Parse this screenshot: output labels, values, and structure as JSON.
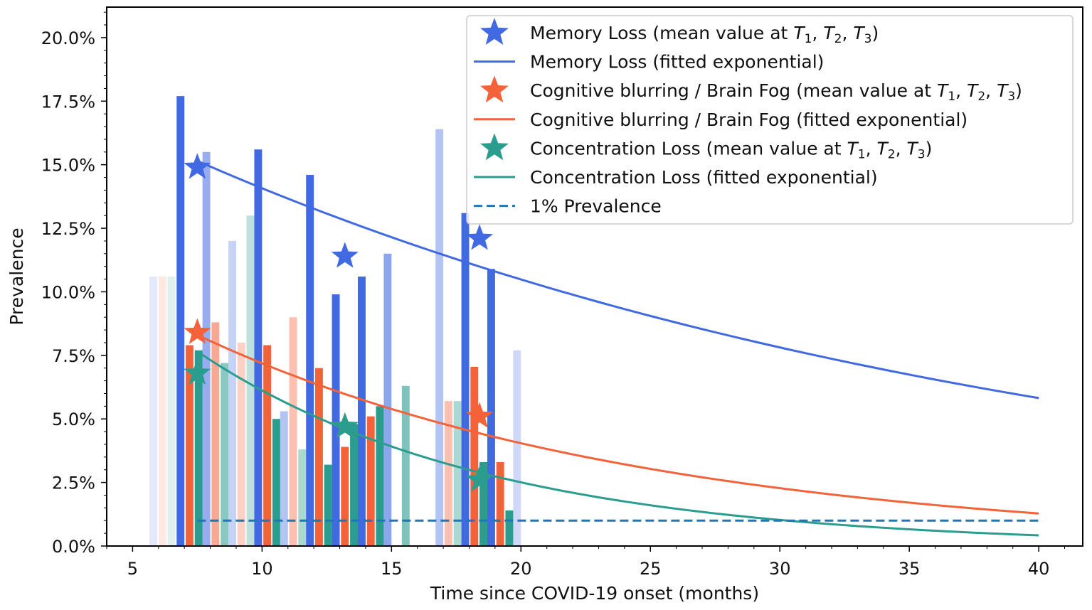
{
  "chart_data": {
    "type": "bar",
    "title": "",
    "xlabel": "Time since COVID-19 onset (months)",
    "ylabel": "Prevalence",
    "xlim": [
      4,
      41.7
    ],
    "ylim": [
      0,
      21.2
    ],
    "xticks": [
      5,
      10,
      15,
      20,
      25,
      30,
      35,
      40
    ],
    "xtick_labels": [
      "5",
      "10",
      "15",
      "20",
      "25",
      "30",
      "35",
      "40"
    ],
    "yticks": [
      0,
      2.5,
      5,
      7.5,
      10,
      12.5,
      15,
      17.5,
      20
    ],
    "ytick_labels": [
      "0.0%",
      "2.5%",
      "5.0%",
      "7.5%",
      "10.0%",
      "12.5%",
      "15.0%",
      "17.5%",
      "20.0%"
    ],
    "bar_width_months": 0.3,
    "colors": {
      "memory": "#4169e1",
      "brainfog": "#f4623a",
      "concentration": "#2a9d8f",
      "threshold": "#1f77b4",
      "frame": "#000000"
    },
    "bars": [
      {
        "series": "memory",
        "x": 5.8,
        "value": 10.6,
        "opacity": 0.15
      },
      {
        "series": "brainfog",
        "x": 6.15,
        "value": 10.6,
        "opacity": 0.15
      },
      {
        "series": "concentration",
        "x": 6.5,
        "value": 10.6,
        "opacity": 0.15
      },
      {
        "series": "memory",
        "x": 6.85,
        "value": 17.7,
        "opacity": 1.0
      },
      {
        "series": "brainfog",
        "x": 7.2,
        "value": 7.9,
        "opacity": 1.0
      },
      {
        "series": "concentration",
        "x": 7.55,
        "value": 7.7,
        "opacity": 1.0
      },
      {
        "series": "memory",
        "x": 7.85,
        "value": 15.5,
        "opacity": 0.55
      },
      {
        "series": "brainfog",
        "x": 8.2,
        "value": 8.8,
        "opacity": 0.55
      },
      {
        "series": "concentration",
        "x": 8.55,
        "value": 7.2,
        "opacity": 0.55
      },
      {
        "series": "memory",
        "x": 8.85,
        "value": 12.0,
        "opacity": 0.3
      },
      {
        "series": "brainfog",
        "x": 9.2,
        "value": 8.0,
        "opacity": 0.3
      },
      {
        "series": "concentration",
        "x": 9.55,
        "value": 13.0,
        "opacity": 0.3
      },
      {
        "series": "memory",
        "x": 9.85,
        "value": 15.6,
        "opacity": 1.0
      },
      {
        "series": "brainfog",
        "x": 10.2,
        "value": 7.9,
        "opacity": 1.0
      },
      {
        "series": "concentration",
        "x": 10.55,
        "value": 5.0,
        "opacity": 1.0
      },
      {
        "series": "memory",
        "x": 10.85,
        "value": 5.3,
        "opacity": 0.4
      },
      {
        "series": "brainfog",
        "x": 11.2,
        "value": 9.0,
        "opacity": 0.4
      },
      {
        "series": "concentration",
        "x": 11.55,
        "value": 3.8,
        "opacity": 0.4
      },
      {
        "series": "memory",
        "x": 11.85,
        "value": 14.6,
        "opacity": 1.0
      },
      {
        "series": "brainfog",
        "x": 12.2,
        "value": 7.0,
        "opacity": 1.0
      },
      {
        "series": "concentration",
        "x": 12.55,
        "value": 3.2,
        "opacity": 1.0
      },
      {
        "series": "memory",
        "x": 12.85,
        "value": 9.9,
        "opacity": 1.0
      },
      {
        "series": "brainfog",
        "x": 13.2,
        "value": 3.9,
        "opacity": 1.0
      },
      {
        "series": "concentration",
        "x": 13.55,
        "value": 4.8,
        "opacity": 1.0
      },
      {
        "series": "memory",
        "x": 13.85,
        "value": 10.6,
        "opacity": 1.0
      },
      {
        "series": "brainfog",
        "x": 14.2,
        "value": 5.1,
        "opacity": 1.0
      },
      {
        "series": "concentration",
        "x": 14.55,
        "value": 5.5,
        "opacity": 1.0
      },
      {
        "series": "memory",
        "x": 14.85,
        "value": 11.5,
        "opacity": 0.6
      },
      {
        "series": "concentration",
        "x": 15.55,
        "value": 6.3,
        "opacity": 0.6
      },
      {
        "series": "memory",
        "x": 16.85,
        "value": 16.4,
        "opacity": 0.4
      },
      {
        "series": "brainfog",
        "x": 17.2,
        "value": 5.7,
        "opacity": 0.4
      },
      {
        "series": "concentration",
        "x": 17.55,
        "value": 5.7,
        "opacity": 0.4
      },
      {
        "series": "memory",
        "x": 17.85,
        "value": 13.1,
        "opacity": 1.0
      },
      {
        "series": "brainfog",
        "x": 18.2,
        "value": 7.05,
        "opacity": 1.0
      },
      {
        "series": "concentration",
        "x": 18.55,
        "value": 3.3,
        "opacity": 1.0
      },
      {
        "series": "memory",
        "x": 18.85,
        "value": 10.9,
        "opacity": 1.0
      },
      {
        "series": "brainfog",
        "x": 19.2,
        "value": 3.3,
        "opacity": 1.0
      },
      {
        "series": "concentration",
        "x": 19.55,
        "value": 1.4,
        "opacity": 1.0
      },
      {
        "series": "memory",
        "x": 19.85,
        "value": 7.7,
        "opacity": 0.25
      }
    ],
    "mean_points": [
      {
        "series": "memory",
        "x": [
          7.5,
          13.2,
          18.4
        ],
        "y": [
          14.9,
          11.4,
          12.1
        ]
      },
      {
        "series": "brainfog",
        "x": [
          7.5,
          13.2,
          18.4
        ],
        "y": [
          8.4,
          4.7,
          5.1
        ]
      },
      {
        "series": "concentration",
        "x": [
          7.5,
          13.2,
          18.4
        ],
        "y": [
          6.8,
          4.7,
          2.6
        ]
      }
    ],
    "fitted_curves": [
      {
        "series": "memory",
        "x_range": [
          7.5,
          40
        ],
        "y_start": 15.15,
        "y_end": 5.82
      },
      {
        "series": "brainfog",
        "x_range": [
          7.5,
          40
        ],
        "y_start": 8.3,
        "y_end": 1.28
      },
      {
        "series": "concentration",
        "x_range": [
          7.5,
          40
        ],
        "y_start": 7.65,
        "y_end": 0.42
      }
    ],
    "threshold": {
      "x_range": [
        7.5,
        40
      ],
      "y": 1.0
    },
    "legend_position": "top-right",
    "legend": [
      {
        "key": "memory",
        "marker": "star",
        "prefix": "Memory Loss (mean value at ",
        "suffix": ")"
      },
      {
        "key": "memory",
        "marker": "line",
        "label": "Memory Loss (fitted exponential)"
      },
      {
        "key": "brainfog",
        "marker": "star",
        "prefix": "Cognitive blurring / Brain Fog (mean value at ",
        "suffix": ")"
      },
      {
        "key": "brainfog",
        "marker": "line",
        "label": "Cognitive blurring / Brain Fog (fitted exponential)"
      },
      {
        "key": "concentration",
        "marker": "star",
        "prefix": "Concentration Loss (mean value at ",
        "suffix": ")"
      },
      {
        "key": "concentration",
        "marker": "line",
        "label": "Concentration Loss (fitted exponential)"
      },
      {
        "key": "threshold",
        "marker": "dash",
        "label": "1% Prevalence"
      }
    ],
    "time_points": [
      "T",
      "1",
      "T",
      "2",
      "T",
      "3"
    ]
  }
}
